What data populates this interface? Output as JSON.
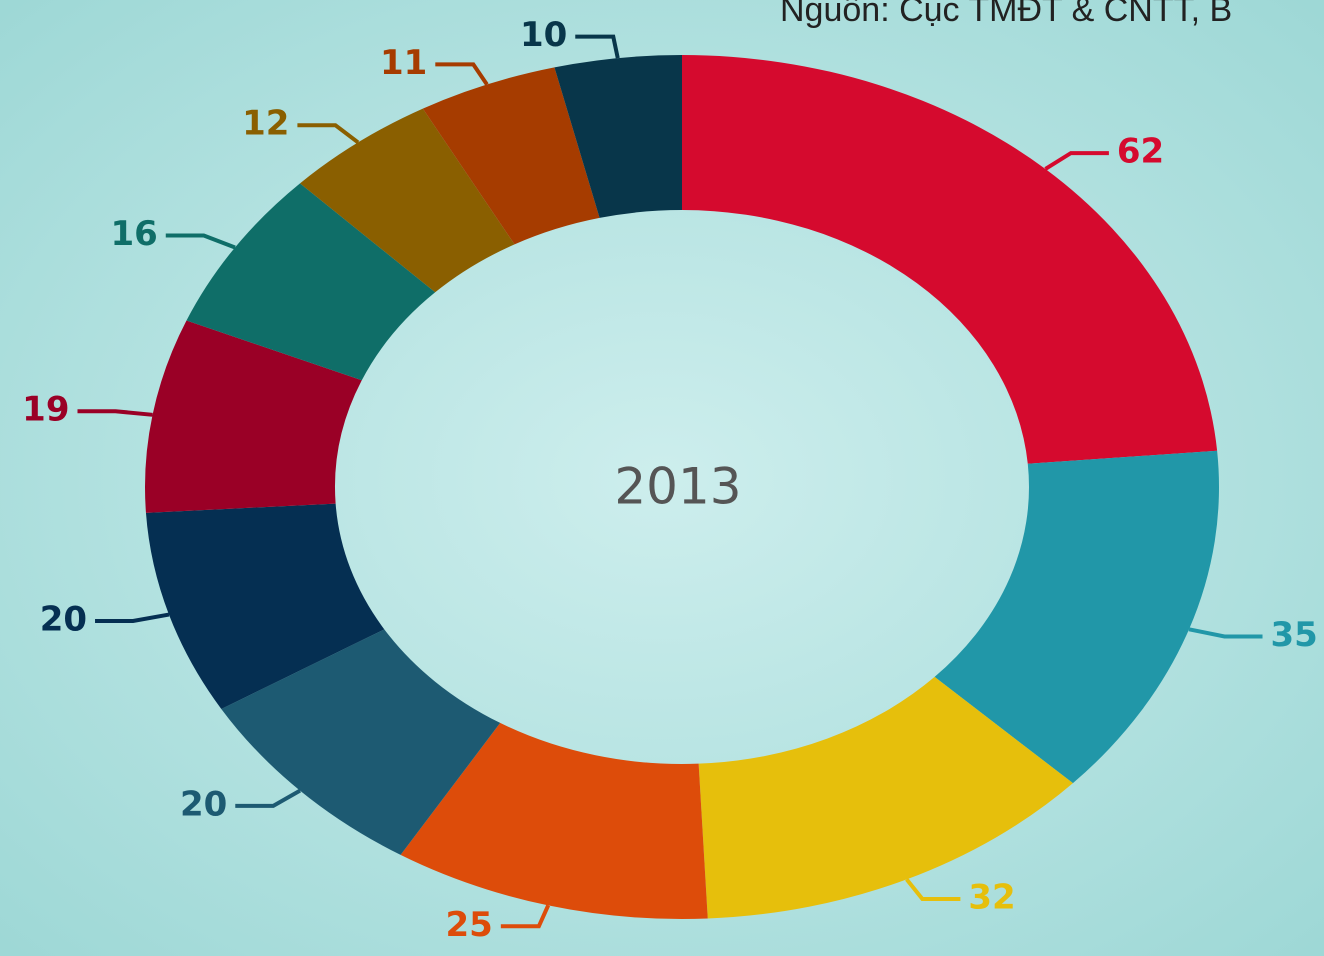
{
  "chart_data": {
    "type": "donut",
    "center_label": "2013",
    "source": "Nguồn: Cục TMĐT & CNTT, B",
    "values": [
      62,
      35,
      32,
      25,
      20,
      20,
      19,
      16,
      12,
      11,
      10
    ],
    "colors": [
      "#d50a2e",
      "#2197a8",
      "#e6bf0c",
      "#dd4c0a",
      "#1d5a72",
      "#052f52",
      "#9a0026",
      "#0f6e68",
      "#8a5f00",
      "#a63c00",
      "#08364a"
    ]
  }
}
